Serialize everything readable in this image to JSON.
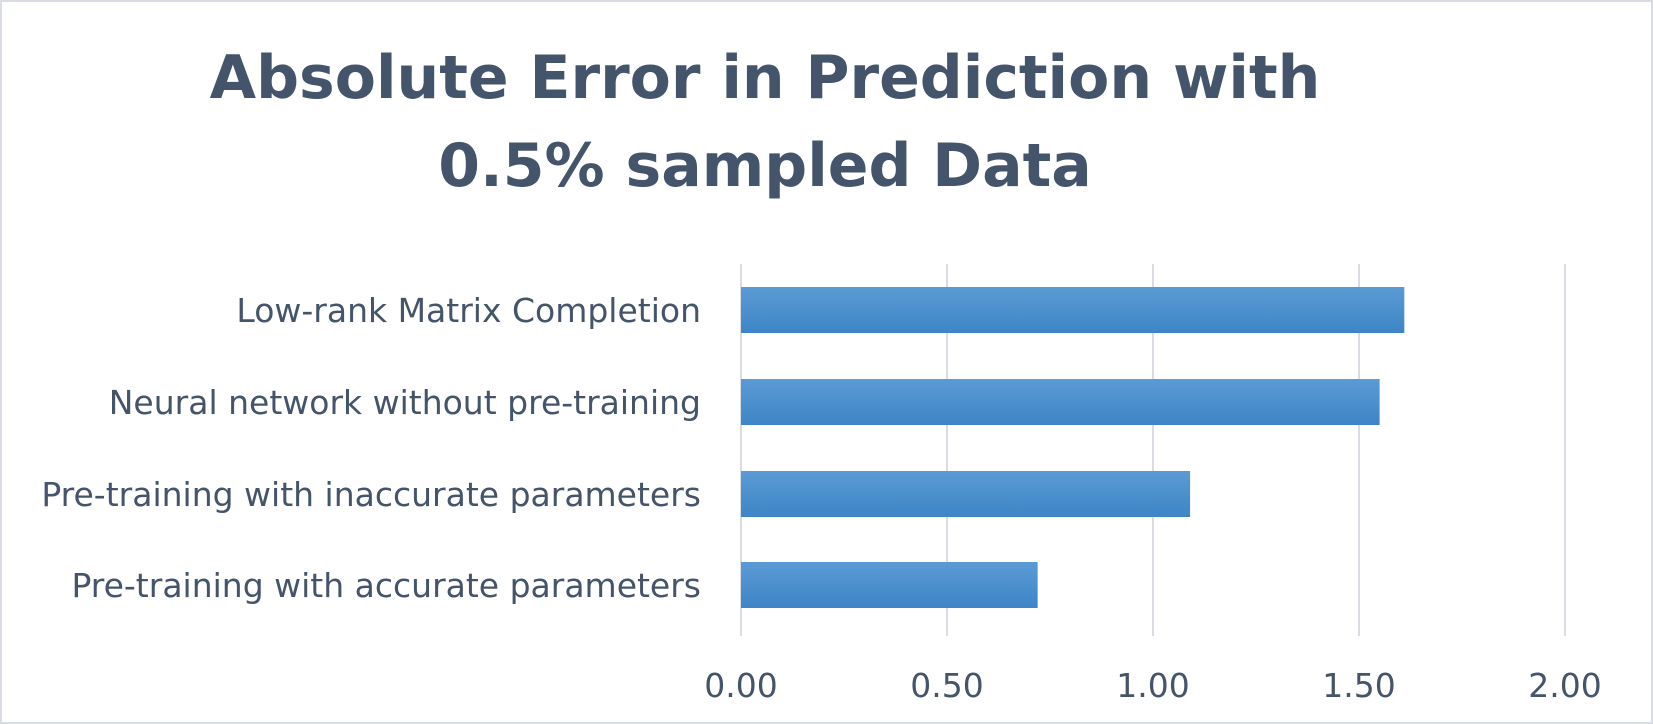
{
  "chart_data": {
    "type": "bar",
    "orientation": "horizontal",
    "title": "Absolute Error in Prediction with 0.5% sampled  Data",
    "categories": [
      "Low-rank Matrix Completion",
      "Neural network without pre-training",
      "Pre-training with inaccurate parameters",
      "Pre-training with accurate parameters"
    ],
    "values": [
      1.61,
      1.55,
      1.09,
      0.72
    ],
    "xlim": [
      0,
      2
    ],
    "x_ticks": [
      "0.00",
      "0.50",
      "1.00",
      "1.50",
      "2.00"
    ],
    "xlabel": "",
    "ylabel": "",
    "grid": "vertical",
    "legend": "none",
    "bar_color": "#5b9bd5",
    "bar_color_dark": "#3d85c6"
  },
  "colors": {
    "text": "#44546a",
    "grid": "#d9dde3",
    "border": "#d9dde3"
  }
}
